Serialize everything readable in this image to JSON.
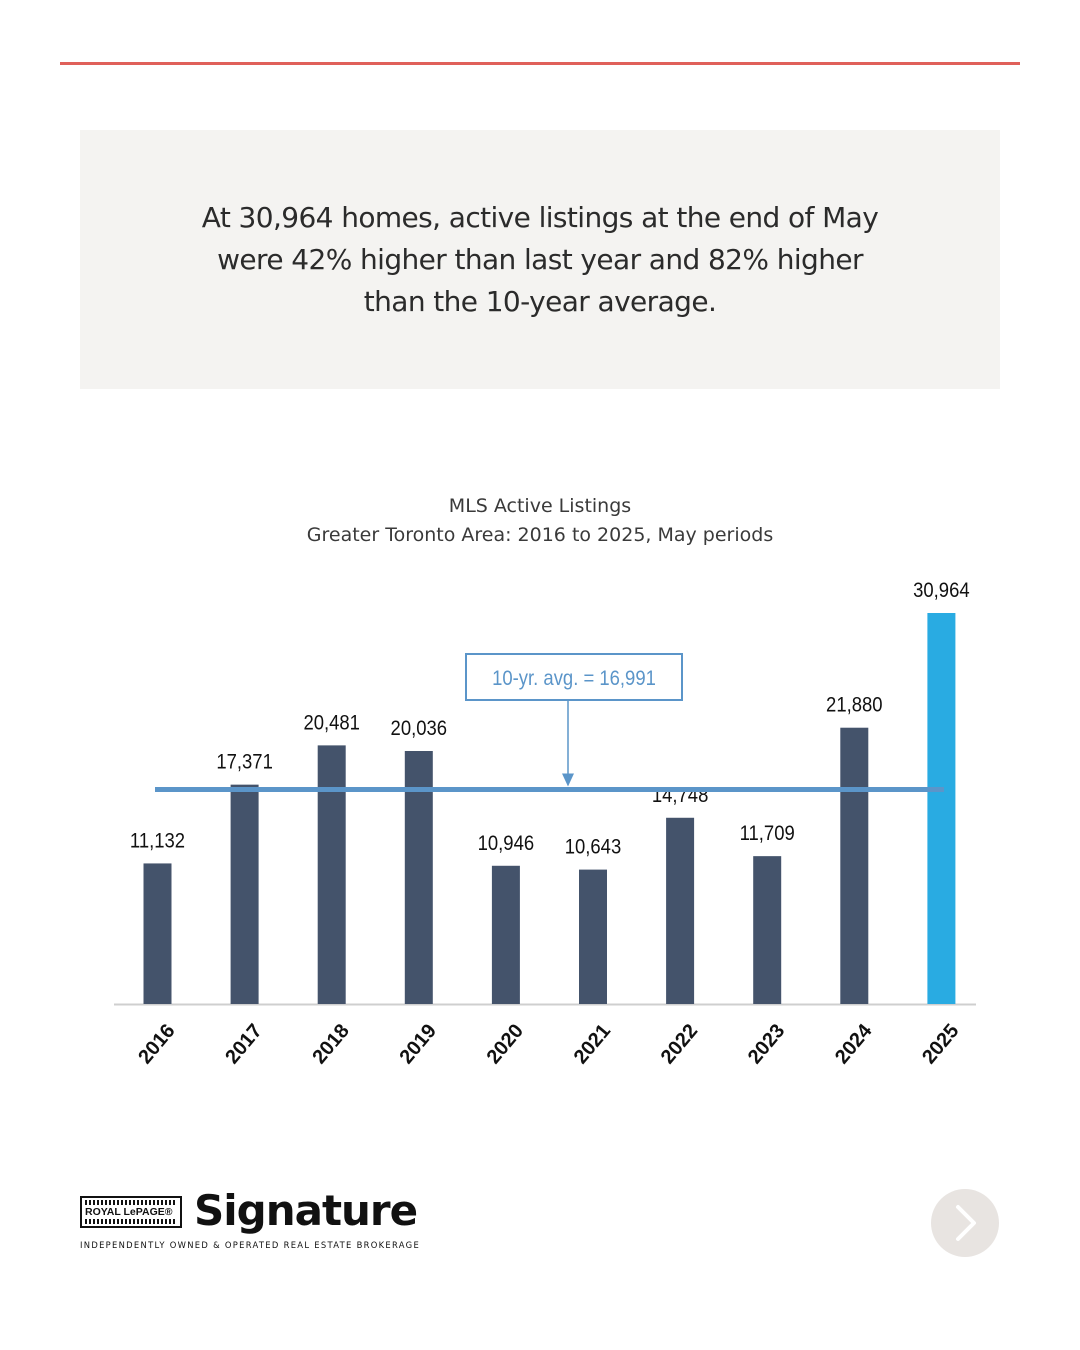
{
  "callout": {
    "text": "At 30,964 homes, active listings at the end of May were 42% higher than last year and 82% higher than the 10-year average."
  },
  "chart_data": {
    "type": "bar",
    "title": "MLS Active Listings",
    "subtitle": "Greater Toronto Area: 2016 to 2025, May periods",
    "categories": [
      "2016",
      "2017",
      "2018",
      "2019",
      "2020",
      "2021",
      "2022",
      "2023",
      "2024",
      "2025"
    ],
    "values": [
      11132,
      17371,
      20481,
      20036,
      10946,
      10643,
      14748,
      11709,
      21880,
      30964
    ],
    "value_labels": [
      "11,132",
      "17,371",
      "20,481",
      "20,036",
      "10,946",
      "10,643",
      "14,748",
      "11,709",
      "21,880",
      "30,964"
    ],
    "ylim": [
      0,
      31000
    ],
    "grid": false,
    "highlight_category": "2025",
    "reference_line": {
      "value": 16991,
      "label": "10-yr. avg. = 16,991"
    },
    "colors": {
      "bar": "#44536b",
      "highlight": "#29abe2",
      "reference": "#5b95c9"
    }
  },
  "logo": {
    "brand": "ROYAL LePAGE®",
    "wordmark": "Signature",
    "tagline": "INDEPENDENTLY OWNED & OPERATED REAL ESTATE BROKERAGE"
  },
  "nav": {
    "next_icon": "chevron-right-icon"
  }
}
